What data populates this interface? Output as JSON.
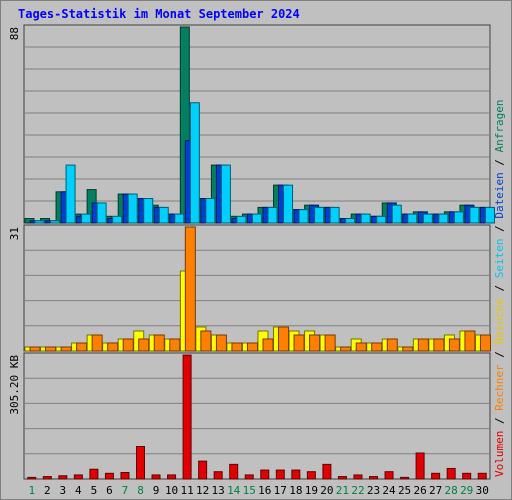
{
  "chart_data": {
    "type": "bar",
    "title": "Tages-Statistik im Monat September 2024",
    "categories": [
      "1",
      "2",
      "3",
      "4",
      "5",
      "6",
      "7",
      "8",
      "9",
      "10",
      "11",
      "12",
      "13",
      "14",
      "15",
      "16",
      "17",
      "18",
      "19",
      "20",
      "21",
      "22",
      "23",
      "24",
      "25",
      "26",
      "27",
      "28",
      "29",
      "30"
    ],
    "weekend_days": [
      1,
      7,
      8,
      14,
      15,
      21,
      22,
      28,
      29
    ],
    "panels": [
      {
        "max_label": "88",
        "ymax": 88,
        "series": [
          {
            "name": "Anfragen",
            "color": "#008060",
            "values": [
              2,
              2,
              14,
              4,
              15,
              3,
              13,
              11,
              8,
              4,
              88,
              11,
              26,
              3,
              4,
              7,
              17,
              6,
              8,
              7,
              2,
              4,
              3,
              9,
              4,
              5,
              4,
              5,
              8,
              7
            ]
          },
          {
            "name": "Dateien",
            "color": "#0040d0",
            "values": [
              1,
              1,
              14,
              3,
              9,
              2,
              13,
              11,
              7,
              4,
              37,
              11,
              26,
              2,
              4,
              7,
              17,
              6,
              8,
              7,
              2,
              4,
              3,
              9,
              4,
              5,
              4,
              5,
              8,
              7
            ]
          },
          {
            "name": "Seiten",
            "color": "#00d0ff",
            "values": [
              1,
              1,
              26,
              4,
              9,
              3,
              13,
              11,
              7,
              4,
              54,
              11,
              26,
              3,
              4,
              7,
              17,
              6,
              7,
              7,
              2,
              4,
              3,
              8,
              4,
              4,
              4,
              5,
              7,
              7
            ]
          }
        ]
      },
      {
        "max_label": "31",
        "ymax": 31,
        "series": [
          {
            "name": "Besuche",
            "color": "#ffff00",
            "values": [
              1,
              1,
              1,
              2,
              4,
              2,
              3,
              5,
              4,
              3,
              20,
              6,
              4,
              2,
              2,
              5,
              6,
              5,
              5,
              4,
              1,
              3,
              2,
              3,
              1,
              3,
              3,
              4,
              5,
              4
            ]
          },
          {
            "name": "Rechner",
            "color": "#ff8000",
            "values": [
              1,
              1,
              1,
              2,
              4,
              2,
              3,
              3,
              4,
              3,
              31,
              5,
              4,
              2,
              2,
              3,
              6,
              4,
              4,
              4,
              1,
              2,
              2,
              3,
              1,
              3,
              3,
              3,
              5,
              4
            ]
          }
        ]
      },
      {
        "max_label": "305.20 KB",
        "ymax": 305.2,
        "series": [
          {
            "name": "Volumen",
            "color": "#e00000",
            "values": [
              4,
              6,
              8,
              10,
              24,
              14,
              16,
              80,
              10,
              10,
              305,
              44,
              18,
              36,
              10,
              22,
              22,
              22,
              18,
              36,
              6,
              10,
              6,
              18,
              4,
              64,
              14,
              26,
              14,
              14
            ]
          }
        ]
      }
    ],
    "legend": [
      {
        "label": "Volumen",
        "color": "#e00000"
      },
      {
        "label": "Rechner",
        "color": "#ff8000"
      },
      {
        "label": "Besuche",
        "color": "#e8c800"
      },
      {
        "label": "Seiten",
        "color": "#00c8e8"
      },
      {
        "label": "Dateien",
        "color": "#0040d0"
      },
      {
        "label": "Anfragen",
        "color": "#008060"
      }
    ],
    "legend_separator": " / ",
    "colors": {
      "title": "#0000ff",
      "weekend": "#008040",
      "weekday": "#000000",
      "bg": "#c0c0c0",
      "grid": "#808080"
    }
  }
}
